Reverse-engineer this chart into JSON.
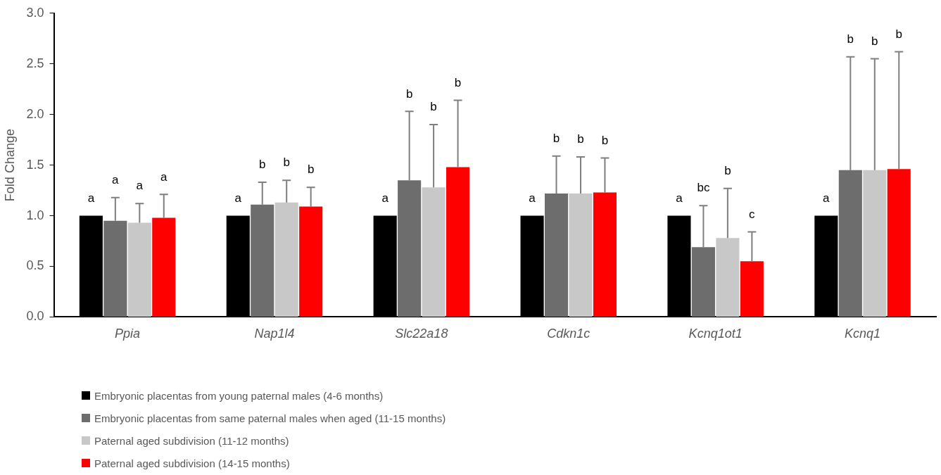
{
  "chart_data": {
    "type": "bar",
    "ylabel": "Fold Change",
    "categories": [
      "Ppia",
      "Nap1l4",
      "Slc22a18",
      "Cdkn1c",
      "Kcnq1ot1",
      "Kcnq1"
    ],
    "series": [
      {
        "name": "Embryonic placentas from young paternal males (4-6 months)",
        "color": "#000000",
        "values": [
          1.0,
          1.0,
          1.0,
          1.0,
          1.0,
          1.0
        ]
      },
      {
        "name": "Embryonic placentas from same paternal males when aged (11-15 months)",
        "color": "#6d6d6d",
        "values": [
          0.95,
          1.11,
          1.35,
          1.22,
          0.69,
          1.45
        ],
        "errors": [
          [
            0.95,
            1.18
          ],
          [
            1.11,
            1.33
          ],
          [
            1.35,
            2.03
          ],
          [
            1.22,
            1.59
          ],
          [
            0.69,
            1.1
          ],
          [
            1.45,
            2.57
          ]
        ]
      },
      {
        "name": "Paternal aged subdivision (11-12 months)",
        "color": "#c8c8c8",
        "values": [
          0.93,
          1.13,
          1.28,
          1.22,
          0.78,
          1.45
        ],
        "errors": [
          [
            0.93,
            1.12
          ],
          [
            1.13,
            1.35
          ],
          [
            1.28,
            1.9
          ],
          [
            1.22,
            1.58
          ],
          [
            0.78,
            1.27
          ],
          [
            1.45,
            2.55
          ]
        ]
      },
      {
        "name": "Paternal aged subdivision (14-15 months)",
        "color": "#ff0000",
        "values": [
          0.98,
          1.09,
          1.48,
          1.23,
          0.55,
          1.46
        ],
        "errors": [
          [
            0.98,
            1.21
          ],
          [
            1.09,
            1.28
          ],
          [
            1.48,
            2.14
          ],
          [
            1.23,
            1.57
          ],
          [
            0.55,
            0.84
          ],
          [
            1.46,
            2.62
          ]
        ]
      }
    ],
    "annotations": [
      "a",
      "a",
      "a",
      "a",
      "a",
      "a",
      "a",
      "b",
      "b",
      "b",
      "bc",
      "b",
      "a",
      "b",
      "b",
      "b",
      "b",
      "b",
      "a",
      "b",
      "b",
      "b",
      "c",
      "b"
    ],
    "ylim": [
      0,
      3
    ],
    "yticks": [
      {
        "value": 0,
        "label": "0.0"
      },
      {
        "value": 0.5,
        "label": "0.5"
      },
      {
        "value": 1,
        "label": "1.0"
      },
      {
        "value": 1.5,
        "label": "1.5"
      },
      {
        "value": 2,
        "label": "2.0"
      },
      {
        "value": 2.5,
        "label": "2.5"
      },
      {
        "value": 3,
        "label": "3.0"
      }
    ],
    "grid": false,
    "legend": "bottom left"
  }
}
